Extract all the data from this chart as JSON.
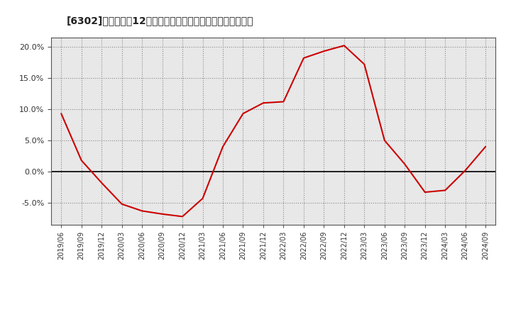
{
  "title": "[6302]　売上高の12か月移動合計の対前年同期増減率の推移",
  "line_color": "#cc0000",
  "background_color": "#ffffff",
  "plot_bg_color": "#e8e8e8",
  "grid_color": "#888888",
  "zero_line_color": "#000000",
  "ylim": [
    -0.085,
    0.215
  ],
  "yticks": [
    -0.05,
    0.0,
    0.05,
    0.1,
    0.15,
    0.2
  ],
  "dates": [
    "2019/06",
    "2019/09",
    "2019/12",
    "2020/03",
    "2020/06",
    "2020/09",
    "2020/12",
    "2021/03",
    "2021/06",
    "2021/09",
    "2021/12",
    "2022/03",
    "2022/06",
    "2022/09",
    "2022/12",
    "2023/03",
    "2023/06",
    "2023/09",
    "2023/12",
    "2024/03",
    "2024/06",
    "2024/09"
  ],
  "values": [
    0.093,
    0.018,
    -0.018,
    -0.052,
    -0.063,
    -0.068,
    -0.072,
    -0.043,
    0.04,
    0.093,
    0.11,
    0.112,
    0.182,
    0.193,
    0.202,
    0.172,
    0.05,
    0.012,
    -0.033,
    -0.03,
    0.002,
    0.04
  ]
}
